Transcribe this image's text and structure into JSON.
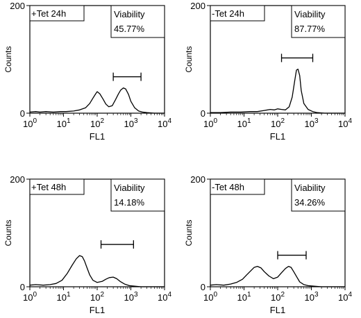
{
  "chart_data": [
    {
      "type": "histogram",
      "label": "+Tet 24h",
      "viability_title": "Viability",
      "viability_value": "45.77%",
      "xlabel": "FL1",
      "ylabel": "Counts",
      "ylim": [
        0,
        200
      ],
      "yticks": [
        "0",
        "200"
      ],
      "xscale": "log",
      "xlim": [
        1,
        10000
      ],
      "xtick_exponents": [
        "0",
        "1",
        "2",
        "3",
        "4"
      ],
      "marker_range": [
        300,
        2000
      ],
      "x": [
        1,
        1.5,
        2,
        3,
        5,
        8,
        12,
        20,
        30,
        45,
        60,
        75,
        90,
        100,
        120,
        150,
        180,
        220,
        280,
        350,
        430,
        500,
        600,
        700,
        850,
        1000,
        1300,
        1700,
        2200,
        3000,
        5000,
        10000
      ],
      "y": [
        2,
        3,
        2,
        3,
        2,
        3,
        3,
        4,
        6,
        10,
        18,
        28,
        36,
        40,
        36,
        26,
        17,
        12,
        14,
        25,
        36,
        43,
        47,
        45,
        35,
        22,
        10,
        4,
        2,
        1,
        0,
        0
      ]
    },
    {
      "type": "histogram",
      "label": "-Tet 24h",
      "viability_title": "Viability",
      "viability_value": "87.77%",
      "xlabel": "FL1",
      "ylabel": "Counts",
      "ylim": [
        0,
        200
      ],
      "yticks": [
        "0",
        "200"
      ],
      "xscale": "log",
      "xlim": [
        1,
        10000
      ],
      "xtick_exponents": [
        "0",
        "1",
        "2",
        "3",
        "4"
      ],
      "marker_range": [
        130,
        1100
      ],
      "x": [
        1,
        2,
        4,
        8,
        15,
        25,
        40,
        60,
        80,
        100,
        130,
        170,
        220,
        270,
        320,
        360,
        400,
        450,
        500,
        600,
        800,
        1100,
        1500,
        2500,
        5000,
        10000
      ],
      "y": [
        1,
        1,
        2,
        2,
        3,
        3,
        5,
        7,
        6,
        8,
        7,
        6,
        12,
        30,
        60,
        80,
        82,
        70,
        42,
        18,
        7,
        3,
        1,
        0,
        0,
        0
      ]
    },
    {
      "type": "histogram",
      "label": "+Tet 48h",
      "viability_title": "Viability",
      "viability_value": "14.18%",
      "xlabel": "FL1",
      "ylabel": "Counts",
      "ylim": [
        0,
        200
      ],
      "yticks": [
        "0",
        "200"
      ],
      "xscale": "log",
      "xlim": [
        1,
        10000
      ],
      "xtick_exponents": [
        "0",
        "1",
        "2",
        "3",
        "4"
      ],
      "marker_range": [
        130,
        1200
      ],
      "x": [
        1,
        1.5,
        2.5,
        4,
        6,
        9,
        13,
        18,
        24,
        30,
        36,
        42,
        50,
        60,
        75,
        100,
        140,
        180,
        230,
        300,
        380,
        480,
        650,
        900,
        1300,
        2000,
        4000,
        10000
      ],
      "y": [
        3,
        4,
        3,
        4,
        6,
        12,
        25,
        40,
        52,
        58,
        56,
        48,
        35,
        22,
        12,
        8,
        10,
        14,
        17,
        18,
        15,
        10,
        5,
        2,
        1,
        0,
        0,
        0
      ]
    },
    {
      "type": "histogram",
      "label": "-Tet 48h",
      "viability_title": "Viability",
      "viability_value": "34.26%",
      "xlabel": "FL1",
      "ylabel": "Counts",
      "ylim": [
        0,
        200
      ],
      "yticks": [
        "0",
        "200"
      ],
      "xscale": "log",
      "xlim": [
        1,
        10000
      ],
      "xtick_exponents": [
        "0",
        "1",
        "2",
        "3",
        "4"
      ],
      "marker_range": [
        100,
        700
      ],
      "x": [
        1,
        1.5,
        2.5,
        4,
        6,
        9,
        12,
        16,
        20,
        25,
        32,
        40,
        55,
        75,
        100,
        130,
        170,
        210,
        250,
        300,
        370,
        450,
        600,
        800,
        1200,
        2000,
        5000,
        10000
      ],
      "y": [
        3,
        4,
        3,
        5,
        8,
        14,
        22,
        30,
        36,
        38,
        35,
        28,
        20,
        15,
        18,
        26,
        34,
        38,
        36,
        28,
        18,
        9,
        4,
        2,
        1,
        0,
        0,
        0
      ]
    }
  ]
}
